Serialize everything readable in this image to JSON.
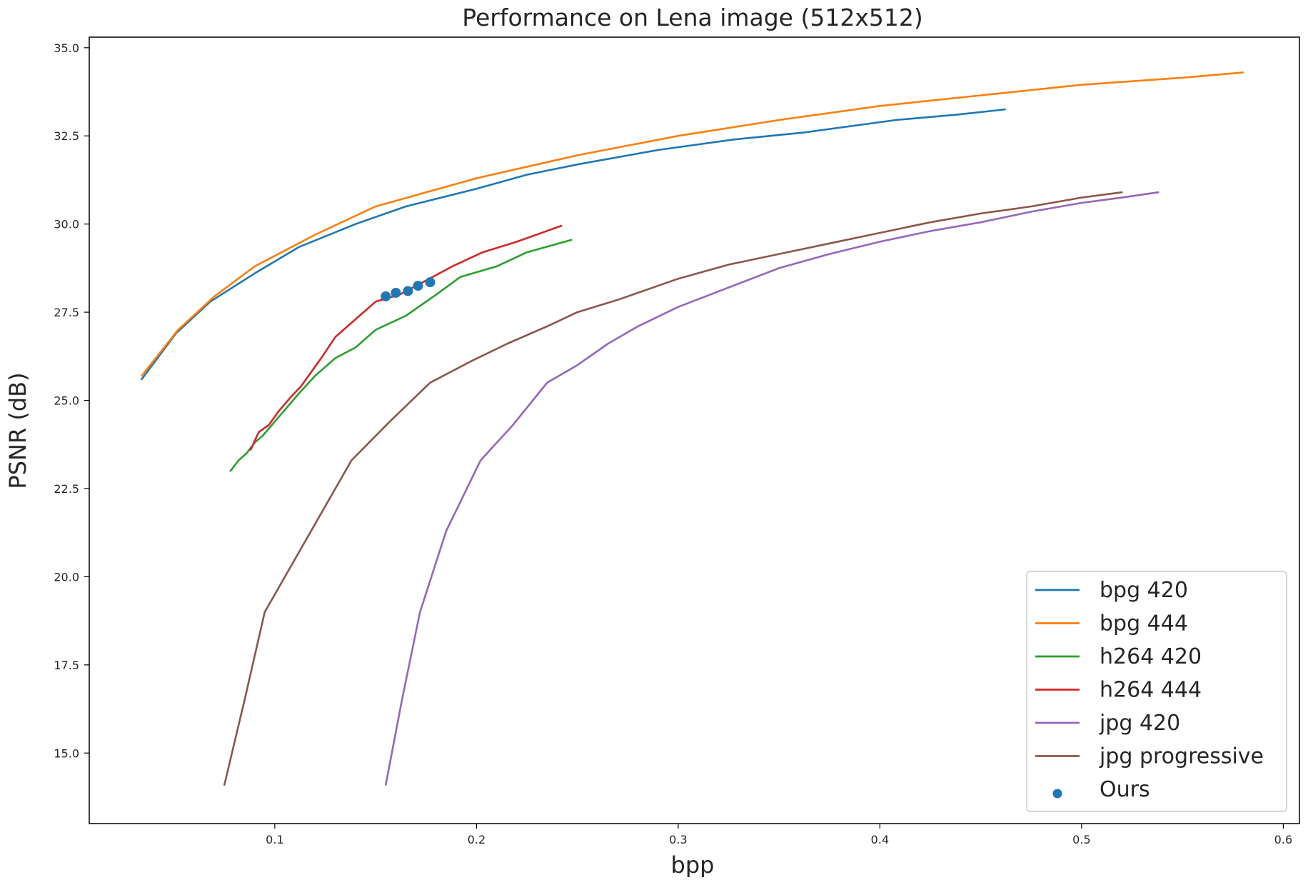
{
  "chart_data": {
    "type": "line",
    "title": "Performance on Lena image (512x512)",
    "xlabel": "bpp",
    "ylabel": "PSNR (dB)",
    "xlim": [
      0.008,
      0.608
    ],
    "ylim": [
      13.0,
      35.3
    ],
    "xticks": [
      0.1,
      0.2,
      0.3,
      0.4,
      0.5,
      0.6
    ],
    "xtick_labels": [
      "0.1",
      "0.2",
      "0.3",
      "0.4",
      "0.5",
      "0.6"
    ],
    "yticks": [
      15.0,
      17.5,
      20.0,
      22.5,
      25.0,
      27.5,
      30.0,
      32.5,
      35.0
    ],
    "ytick_labels": [
      "15.0",
      "17.5",
      "20.0",
      "22.5",
      "25.0",
      "27.5",
      "30.0",
      "32.5",
      "35.0"
    ],
    "grid": false,
    "legend_position": "lower-right",
    "series": [
      {
        "name": "bpg 420",
        "color": "#1f77b4",
        "style": "line",
        "x": [
          0.034,
          0.051,
          0.068,
          0.09,
          0.112,
          0.14,
          0.165,
          0.2,
          0.225,
          0.251,
          0.29,
          0.328,
          0.363,
          0.408,
          0.438,
          0.462
        ],
        "y": [
          25.6,
          26.9,
          27.8,
          28.6,
          29.35,
          30.0,
          30.5,
          31.0,
          31.4,
          31.7,
          32.1,
          32.4,
          32.6,
          32.95,
          33.1,
          33.25
        ]
      },
      {
        "name": "bpg 444",
        "color": "#ff7f0e",
        "style": "line",
        "x": [
          0.034,
          0.052,
          0.07,
          0.09,
          0.12,
          0.15,
          0.2,
          0.25,
          0.3,
          0.35,
          0.4,
          0.45,
          0.5,
          0.55,
          0.58
        ],
        "y": [
          25.7,
          27.0,
          27.95,
          28.8,
          29.7,
          30.5,
          31.3,
          31.95,
          32.5,
          32.95,
          33.35,
          33.65,
          33.95,
          34.15,
          34.3
        ]
      },
      {
        "name": "h264 420",
        "color": "#2ca02c",
        "style": "line",
        "x": [
          0.078,
          0.082,
          0.086,
          0.09,
          0.094,
          0.1,
          0.106,
          0.112,
          0.12,
          0.13,
          0.14,
          0.15,
          0.165,
          0.18,
          0.192,
          0.21,
          0.225,
          0.247
        ],
        "y": [
          23.0,
          23.3,
          23.5,
          23.8,
          24.0,
          24.4,
          24.8,
          25.2,
          25.7,
          26.2,
          26.5,
          27.0,
          27.4,
          28.0,
          28.5,
          28.8,
          29.2,
          29.55
        ]
      },
      {
        "name": "h264 444",
        "color": "#d62728",
        "style": "line",
        "x": [
          0.088,
          0.092,
          0.097,
          0.102,
          0.108,
          0.113,
          0.118,
          0.123,
          0.13,
          0.14,
          0.15,
          0.162,
          0.175,
          0.188,
          0.203,
          0.22,
          0.242
        ],
        "y": [
          23.6,
          24.1,
          24.3,
          24.7,
          25.1,
          25.4,
          25.8,
          26.2,
          26.8,
          27.3,
          27.8,
          28.0,
          28.4,
          28.8,
          29.2,
          29.5,
          29.95
        ]
      },
      {
        "name": "jpg 420",
        "color": "#9467bd",
        "style": "line",
        "x": [
          0.155,
          0.163,
          0.172,
          0.185,
          0.202,
          0.218,
          0.235,
          0.25,
          0.265,
          0.28,
          0.3,
          0.325,
          0.35,
          0.375,
          0.4,
          0.425,
          0.45,
          0.475,
          0.5,
          0.52,
          0.538
        ],
        "y": [
          14.1,
          16.5,
          19.0,
          21.3,
          23.3,
          24.3,
          25.5,
          26.0,
          26.6,
          27.1,
          27.65,
          28.2,
          28.75,
          29.15,
          29.5,
          29.8,
          30.05,
          30.35,
          30.6,
          30.75,
          30.9
        ]
      },
      {
        "name": "jpg progressive",
        "color": "#8c564b",
        "style": "line",
        "x": [
          0.075,
          0.085,
          0.095,
          0.118,
          0.138,
          0.157,
          0.177,
          0.197,
          0.215,
          0.235,
          0.25,
          0.27,
          0.3,
          0.325,
          0.35,
          0.375,
          0.4,
          0.425,
          0.45,
          0.475,
          0.5,
          0.52
        ],
        "y": [
          14.1,
          16.5,
          19.0,
          21.3,
          23.3,
          24.4,
          25.5,
          26.1,
          26.6,
          27.1,
          27.5,
          27.85,
          28.45,
          28.85,
          29.15,
          29.45,
          29.75,
          30.05,
          30.3,
          30.5,
          30.75,
          30.9
        ]
      },
      {
        "name": "Ours",
        "color": "#1f77b4",
        "style": "scatter",
        "x": [
          0.155,
          0.16,
          0.166,
          0.171,
          0.177
        ],
        "y": [
          27.95,
          28.05,
          28.1,
          28.25,
          28.35
        ]
      }
    ]
  }
}
